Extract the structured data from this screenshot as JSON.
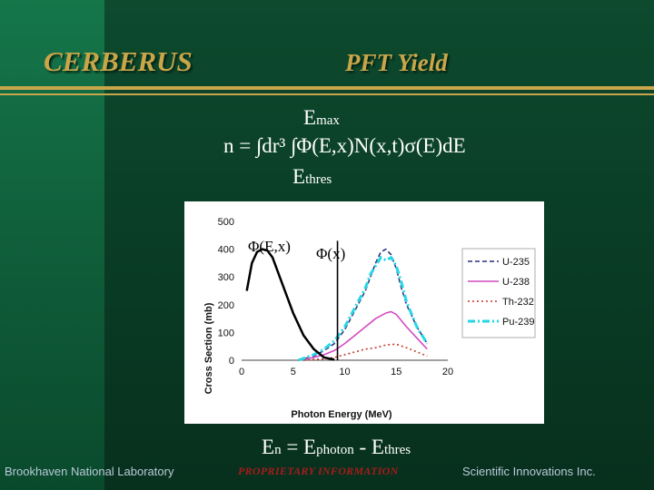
{
  "header": {
    "left_title": "CERBERUS",
    "right_title": "PFT Yield"
  },
  "equation": {
    "upper_limit": "E",
    "upper_sub": "max",
    "main": "n = ∫dr³ ∫Φ(E,x)N(x,t)σ(E)dE",
    "lower_limit": "E",
    "lower_sub": "thres"
  },
  "photon_equation": {
    "lhs": "E",
    "lhs_sub": "n",
    "eq": " =  E",
    "photon_sub": "photon",
    "minus": " - E",
    "thres_sub": "thres"
  },
  "footer": {
    "left": "Brookhaven National Laboratory",
    "center": "PROPRIETARY INFORMATION",
    "right": "Scientific Innovations Inc."
  },
  "annotations": {
    "phi_ex": "Φ(E,x)",
    "phi_x": "Φ(x)"
  },
  "colors": {
    "gold": "#c9a64a",
    "u235": "#2b2f7a",
    "u238": "#d24bc2",
    "th232": "#c0392b",
    "pu239": "#27d6e6"
  },
  "chart_data": {
    "type": "line",
    "xlabel": "Photon Energy (MeV)",
    "ylabel": "Cross Section (mb)",
    "xlim": [
      0,
      20
    ],
    "ylim": [
      0,
      500
    ],
    "xticks": [
      0,
      5,
      10,
      15,
      20
    ],
    "yticks": [
      0,
      100,
      200,
      300,
      400,
      500
    ],
    "grid": false,
    "legend": "right",
    "series": [
      {
        "name": "U-235",
        "style": "dashed",
        "x": [
          5.5,
          7,
          8,
          9,
          10,
          11,
          12,
          12.5,
          13,
          13.5,
          14,
          14.5,
          15,
          15.5,
          16,
          17,
          18
        ],
        "y": [
          0,
          15,
          35,
          60,
          110,
          180,
          250,
          300,
          350,
          390,
          400,
          380,
          330,
          260,
          200,
          120,
          60
        ]
      },
      {
        "name": "U-238",
        "style": "solid",
        "x": [
          5.5,
          7,
          8,
          9,
          10,
          11,
          12,
          13,
          14,
          14.5,
          15,
          16,
          17,
          18
        ],
        "y": [
          0,
          10,
          20,
          35,
          60,
          90,
          120,
          150,
          170,
          175,
          165,
          120,
          80,
          40
        ]
      },
      {
        "name": "Th-232",
        "style": "dotted",
        "x": [
          6,
          8,
          9,
          10,
          11,
          12,
          13,
          14,
          15,
          16,
          17,
          18
        ],
        "y": [
          0,
          5,
          10,
          20,
          30,
          40,
          45,
          55,
          58,
          45,
          30,
          15
        ]
      },
      {
        "name": "Pu-239",
        "style": "dashdot",
        "x": [
          5.5,
          7,
          8,
          9,
          10,
          11,
          12,
          12.5,
          13,
          13.5,
          14,
          14.5,
          15,
          15.5,
          16,
          17,
          18
        ],
        "y": [
          0,
          20,
          40,
          70,
          120,
          190,
          260,
          310,
          340,
          370,
          360,
          370,
          340,
          280,
          210,
          120,
          60
        ]
      }
    ],
    "overlay_curve_phi_ex": {
      "x": [
        0.5,
        1,
        1.5,
        2,
        2.5,
        3,
        4,
        5,
        6,
        7,
        8,
        9
      ],
      "y": [
        250,
        350,
        390,
        400,
        395,
        370,
        270,
        170,
        90,
        40,
        10,
        2
      ]
    },
    "overlay_line_phi_x": {
      "x": [
        9.3,
        9.3
      ],
      "y": [
        0,
        430
      ]
    }
  }
}
